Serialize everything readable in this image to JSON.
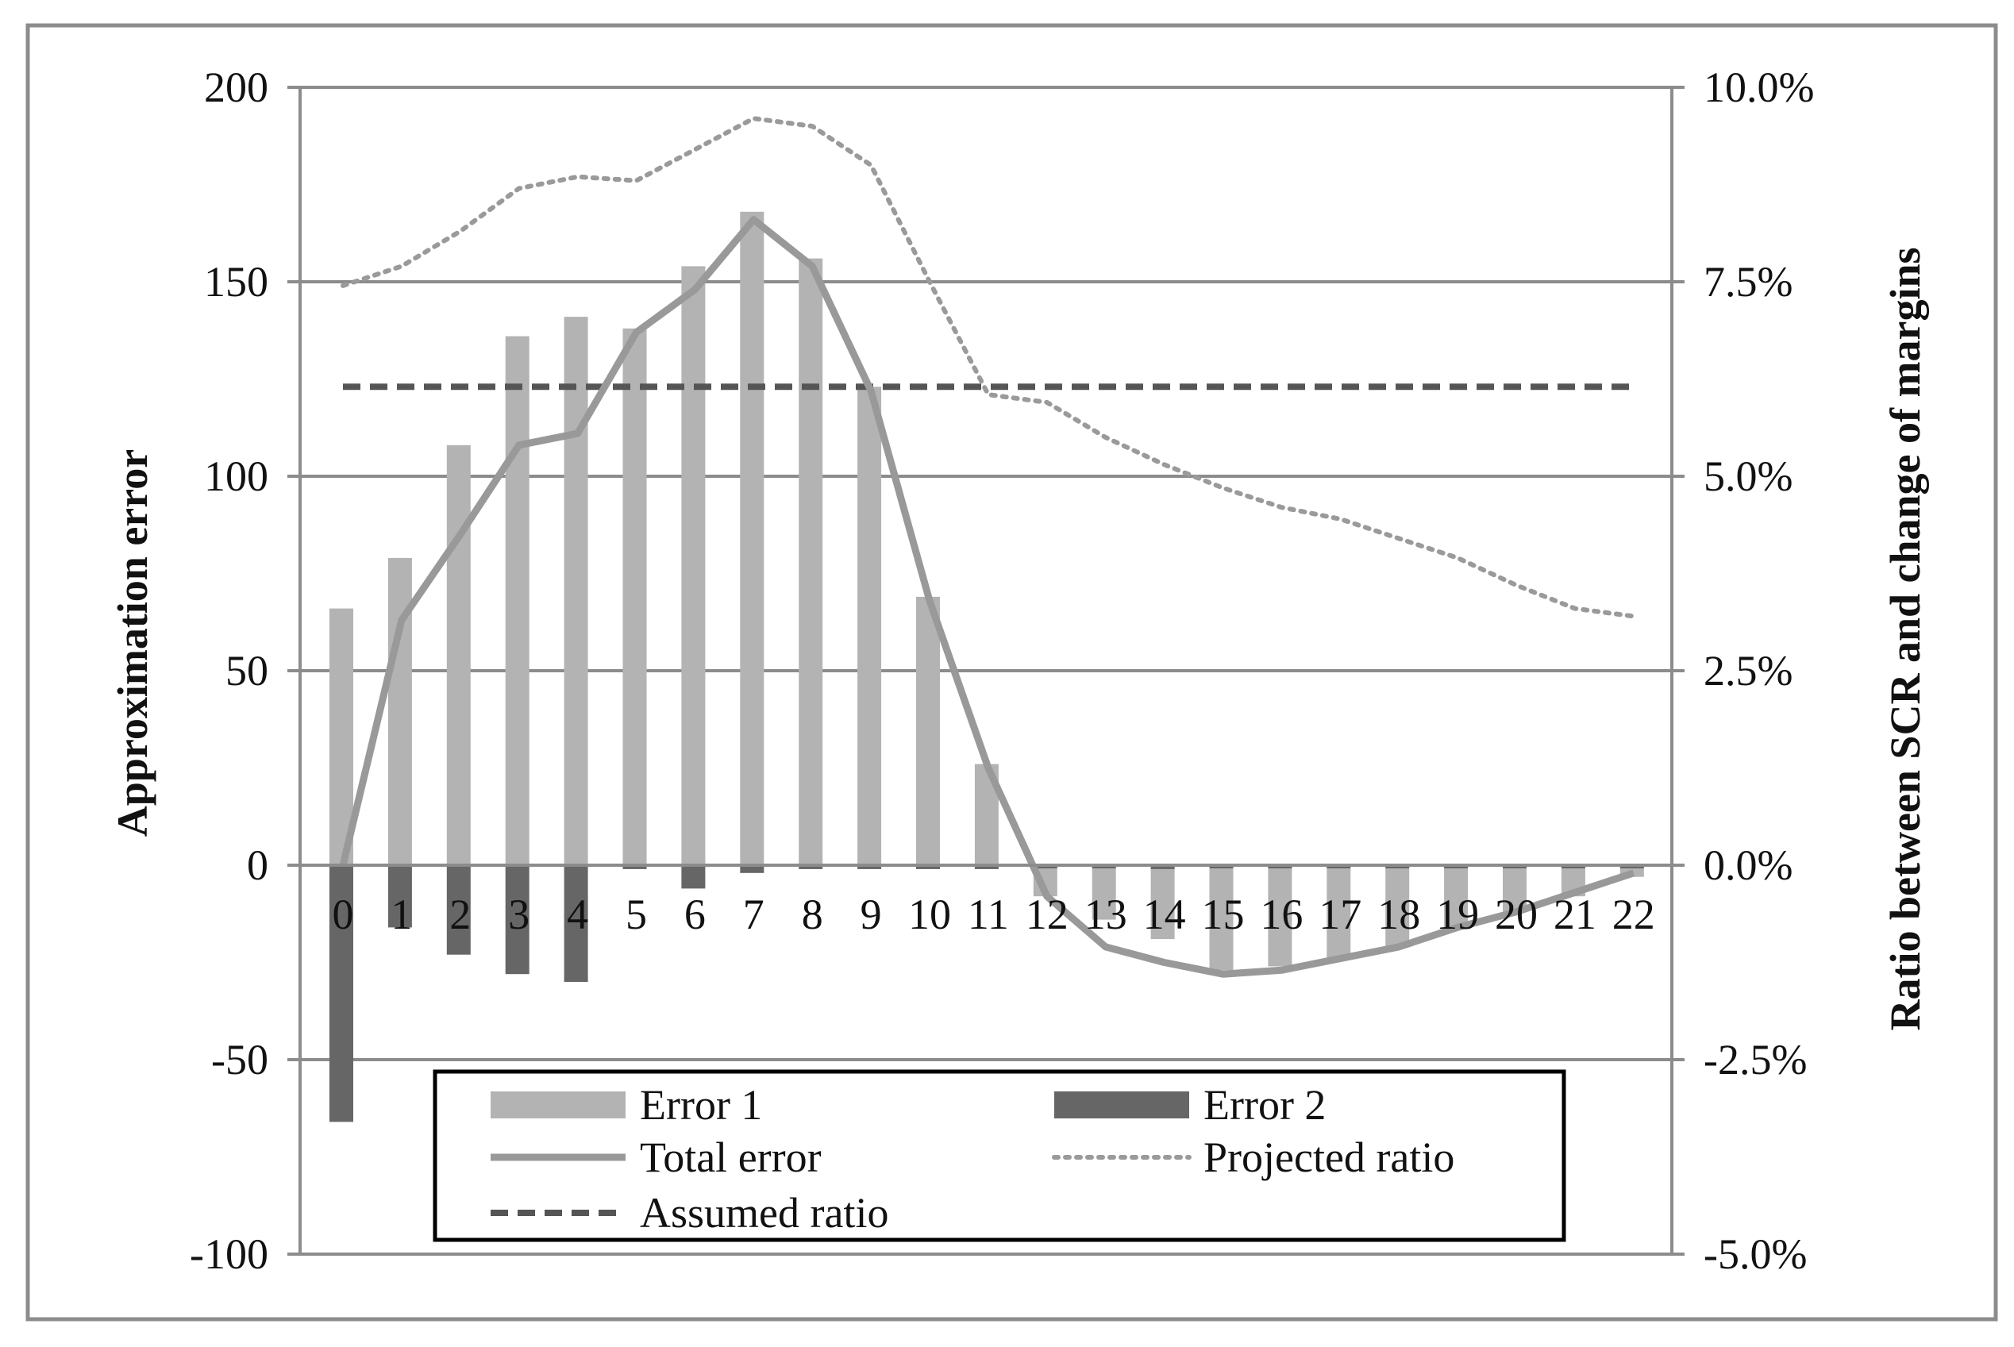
{
  "chart_data": {
    "type": "bar",
    "categories": [
      "0",
      "1",
      "2",
      "3",
      "4",
      "5",
      "6",
      "7",
      "8",
      "9",
      "10",
      "11",
      "12",
      "13",
      "14",
      "15",
      "16",
      "17",
      "18",
      "19",
      "20",
      "21",
      "22"
    ],
    "series": [
      {
        "name": "Error 1",
        "type": "bar",
        "axis": "left",
        "color": "#b3b3b3",
        "values": [
          66,
          79,
          108,
          136,
          141,
          138,
          154,
          168,
          156,
          123,
          69,
          26,
          -8,
          -14,
          -19,
          -27,
          -26,
          -24,
          -21,
          -16,
          -12,
          -8,
          -3
        ]
      },
      {
        "name": "Error 2",
        "type": "bar",
        "axis": "left",
        "color": "#666666",
        "values": [
          -66,
          -16,
          -23,
          -28,
          -30,
          -1,
          -6,
          -2,
          -1,
          -1,
          -1,
          -1,
          0,
          0,
          -1,
          0,
          0,
          0,
          0,
          0,
          0,
          0,
          0
        ]
      },
      {
        "name": "Total error",
        "type": "line",
        "axis": "left",
        "color": "#999999",
        "values": [
          0,
          63,
          85,
          108,
          111,
          137,
          148,
          166,
          154,
          122,
          68,
          25,
          -8,
          -21,
          -25,
          -28,
          -27,
          -24,
          -21,
          -16,
          -12,
          -7,
          -2
        ]
      },
      {
        "name": "Projected ratio",
        "type": "line",
        "style": "dotted",
        "axis": "right",
        "color": "#9a9a9a",
        "values": [
          7.45,
          7.7,
          8.15,
          8.7,
          8.85,
          8.8,
          9.2,
          9.6,
          9.5,
          9.0,
          7.5,
          6.05,
          5.95,
          5.5,
          5.15,
          4.85,
          4.6,
          4.45,
          4.2,
          3.95,
          3.6,
          3.3,
          3.2
        ]
      },
      {
        "name": "Assumed ratio",
        "type": "line",
        "style": "dashed",
        "axis": "right",
        "color": "#555555",
        "values": [
          6.15,
          6.15,
          6.15,
          6.15,
          6.15,
          6.15,
          6.15,
          6.15,
          6.15,
          6.15,
          6.15,
          6.15,
          6.15,
          6.15,
          6.15,
          6.15,
          6.15,
          6.15,
          6.15,
          6.15,
          6.15,
          6.15,
          6.15
        ]
      }
    ],
    "ylabel": "Approximation error",
    "y2label": "Ratio between SCR and change of margins",
    "ylim": [
      -100,
      200
    ],
    "y2lim": [
      -5.0,
      10.0
    ],
    "yticks": [
      "-100",
      "-50",
      "0",
      "50",
      "100",
      "150",
      "200"
    ],
    "y2ticks": [
      "-5.0%",
      "-2.5%",
      "0.0%",
      "2.5%",
      "5.0%",
      "7.5%",
      "10.0%"
    ],
    "grid": "horizontal",
    "legend_position": "bottom-center"
  }
}
